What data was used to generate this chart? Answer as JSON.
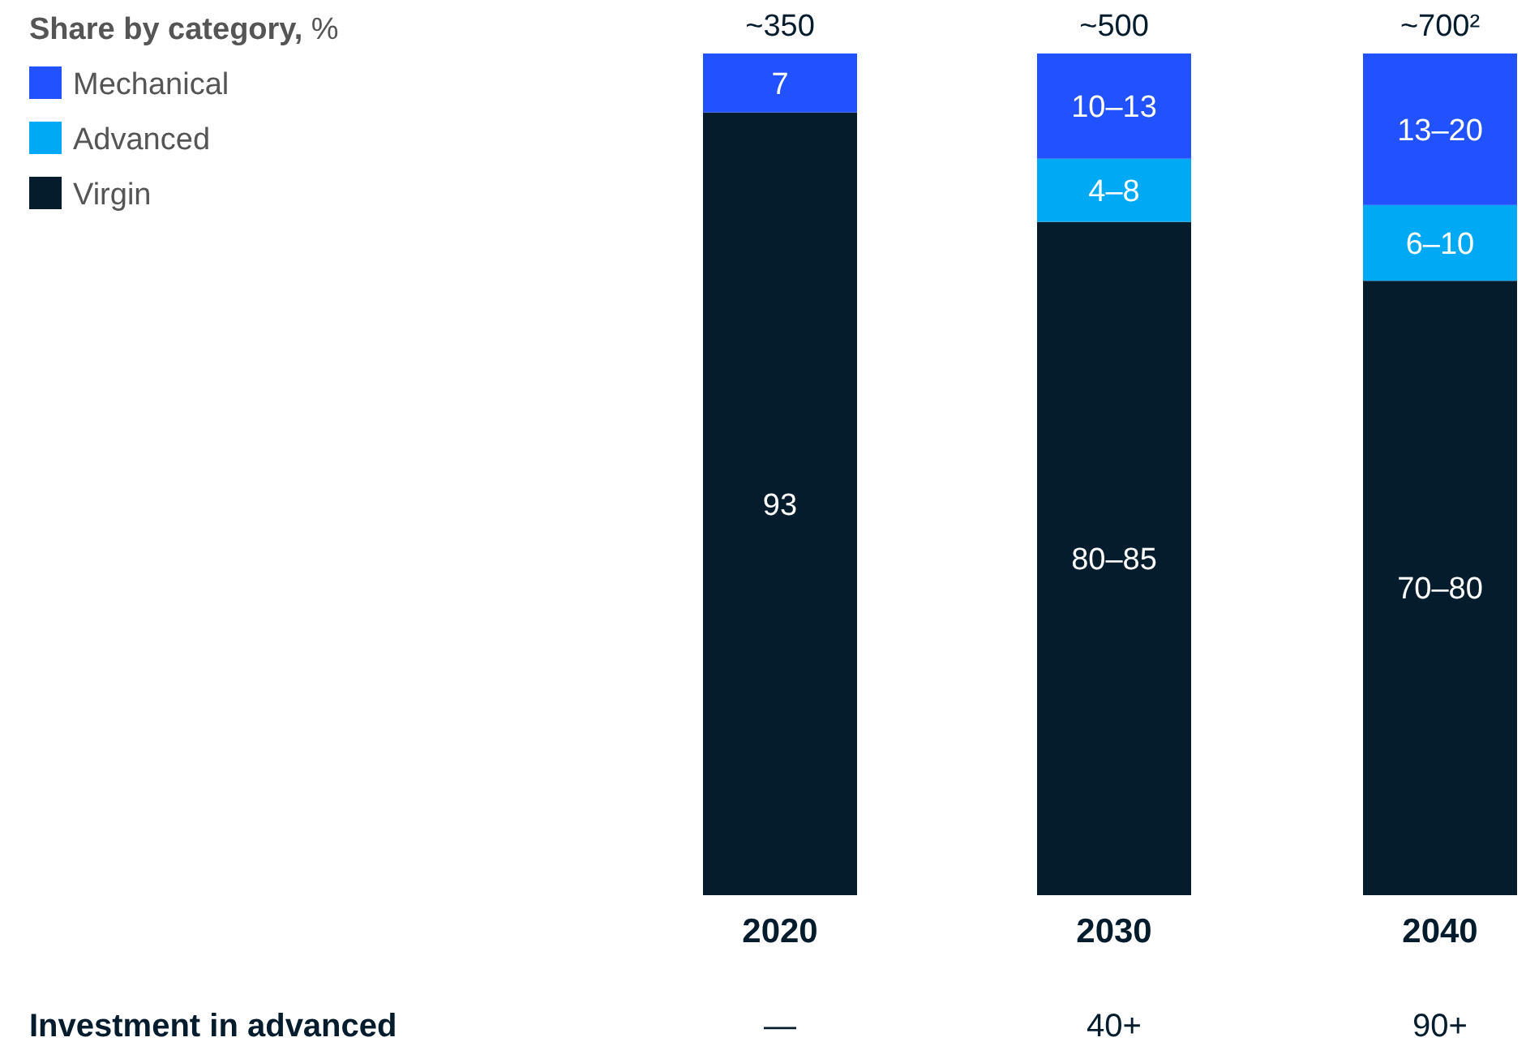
{
  "chart_data": {
    "type": "bar",
    "stacked": true,
    "legend_title": "Share by category, %",
    "legend": "top left",
    "categories": [
      "2020",
      "2030",
      "2040"
    ],
    "series": [
      {
        "name": "Virgin",
        "color": "#051c2c",
        "values": [
          93,
          80,
          73
        ],
        "value_labels": [
          "93",
          "80–85",
          "70–80"
        ]
      },
      {
        "name": "Advanced",
        "color": "#00a9f4",
        "values": [
          0,
          7.5,
          9
        ],
        "value_labels": [
          null,
          "4–8",
          "6–10"
        ]
      },
      {
        "name": "Mechanical",
        "color": "#2251ff",
        "values": [
          7,
          12.5,
          18
        ],
        "value_labels": [
          "7",
          "10–13",
          "13–20"
        ]
      }
    ],
    "annotations": [
      "~350",
      "~500",
      "~700²",
      "Investment in advanced",
      "—",
      "40+",
      "90+"
    ]
  }
}
